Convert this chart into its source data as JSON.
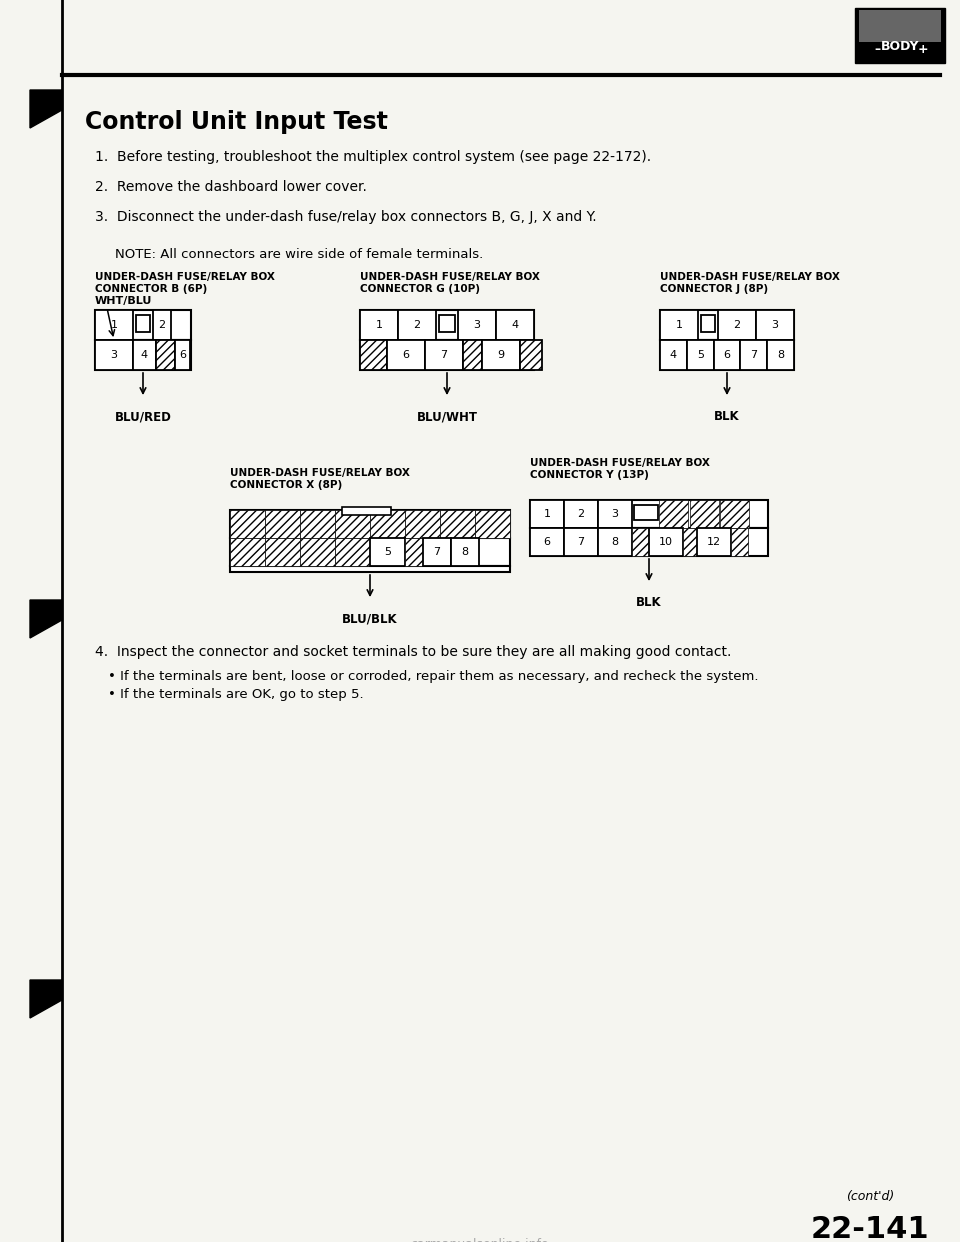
{
  "title": "Control Unit Input Test",
  "bg_color": "#f5f5f0",
  "text_color": "#000000",
  "steps": [
    "1.  Before testing, troubleshoot the multiplex control system (see page 22-172).",
    "2.  Remove the dashboard lower cover.",
    "3.  Disconnect the under-dash fuse/relay box connectors B, G, J, X and Y."
  ],
  "note": "NOTE: All connectors are wire side of female terminals.",
  "step4": "4.  Inspect the connector and socket terminals to be sure they are all making good contact.",
  "bullets": [
    "If the terminals are bent, loose or corroded, repair them as necessary, and recheck the system.",
    "If the terminals are OK, go to step 5."
  ],
  "contd": "(cont'd)",
  "page_num": "22-141",
  "body_label": "BODY"
}
